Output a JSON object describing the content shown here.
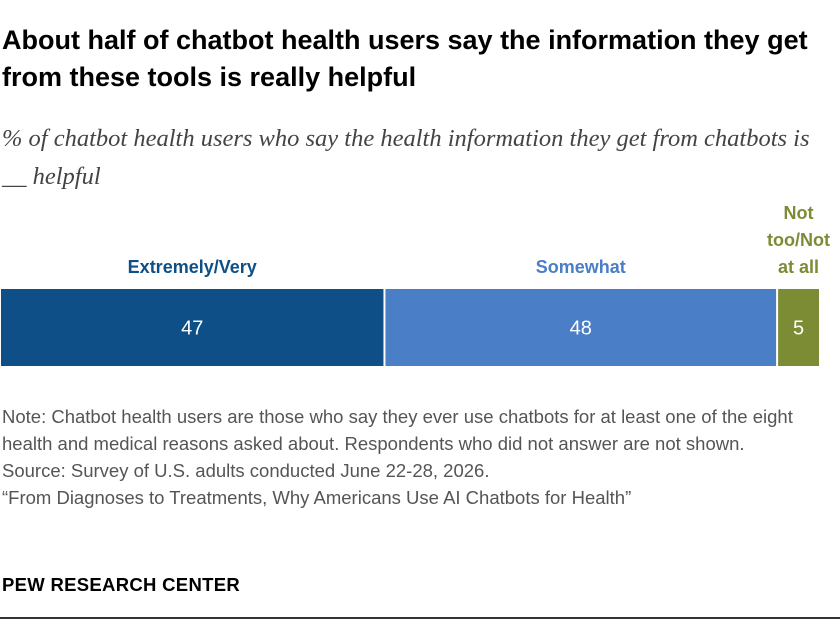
{
  "title": "About half of chatbot health users say the information they get from these tools is really helpful",
  "subtitle": "% of chatbot health users who say the health information they get from chatbots is __ helpful",
  "chart_data": {
    "type": "bar",
    "orientation": "horizontal",
    "stacked": true,
    "categories": [
      "Extremely/Very",
      "Somewhat",
      "Not too/Not at all"
    ],
    "category_label_lines": [
      [
        "Extremely/Very"
      ],
      [
        "Somewhat"
      ],
      [
        "Not",
        "too/Not",
        "at all"
      ]
    ],
    "values": [
      47,
      48,
      5
    ],
    "colors": [
      "#0d4f86",
      "#4a7ec7",
      "#7c8c34"
    ],
    "value_label_color": "#ffffff"
  },
  "notes": {
    "note": "Note: Chatbot health users are those who say they ever use chatbots for at least one of the eight health and medical reasons asked about. Respondents who did not answer are not shown.",
    "source": "Source: Survey of U.S. adults conducted June 22-28, 2026.",
    "report": "“From Diagnoses to Treatments, Why Americans Use AI Chatbots for Health”"
  },
  "brand": "PEW RESEARCH CENTER"
}
